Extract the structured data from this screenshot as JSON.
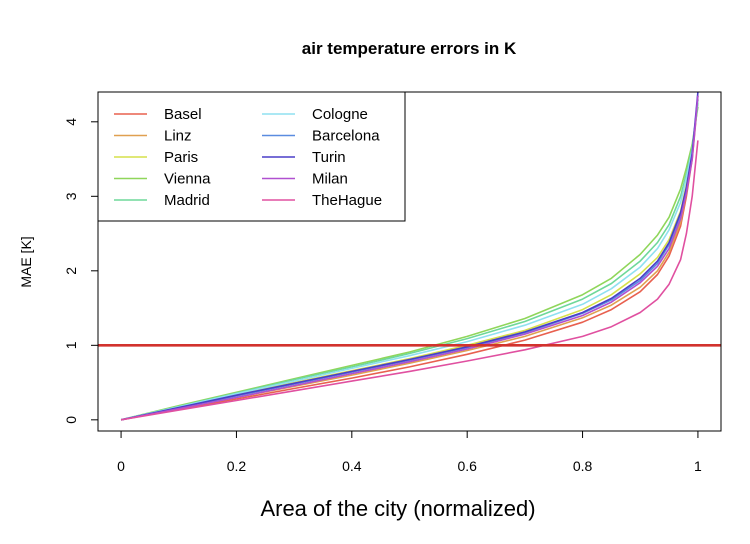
{
  "chart_data": {
    "type": "line",
    "title": "air temperature errors in K",
    "xlabel": "Area of the city (normalized)",
    "ylabel": "MAE [K]",
    "xlim": [
      -0.04,
      1.04
    ],
    "ylim": [
      -0.15,
      4.4
    ],
    "xticks": [
      0,
      0.2,
      0.4,
      0.6,
      0.8,
      1
    ],
    "xtick_labels": [
      "0",
      "0.2",
      "0.4",
      "0.6",
      "0.8",
      "1"
    ],
    "yticks": [
      0,
      1,
      2,
      3,
      4
    ],
    "ytick_labels": [
      "0",
      "1",
      "2",
      "3",
      "4"
    ],
    "grid": false,
    "legend_position": "top-left",
    "reference_line": {
      "y": 1,
      "color": "#d2322d"
    },
    "x": [
      0,
      0.1,
      0.2,
      0.3,
      0.4,
      0.5,
      0.6,
      0.7,
      0.8,
      0.85,
      0.9,
      0.93,
      0.95,
      0.97,
      0.98,
      0.99,
      1.0
    ],
    "series": [
      {
        "name": "Basel",
        "color": "#e8604f",
        "values": [
          0,
          0.14,
          0.28,
          0.42,
          0.56,
          0.71,
          0.88,
          1.07,
          1.31,
          1.48,
          1.72,
          1.95,
          2.2,
          2.6,
          3.0,
          3.5,
          4.3
        ]
      },
      {
        "name": "Linz",
        "color": "#e0a050",
        "values": [
          0,
          0.15,
          0.3,
          0.45,
          0.6,
          0.76,
          0.93,
          1.12,
          1.37,
          1.54,
          1.78,
          2.0,
          2.25,
          2.65,
          3.05,
          3.55,
          4.35
        ]
      },
      {
        "name": "Paris",
        "color": "#d6e04a",
        "values": [
          0,
          0.17,
          0.34,
          0.5,
          0.66,
          0.82,
          1.0,
          1.2,
          1.48,
          1.68,
          1.96,
          2.18,
          2.42,
          2.8,
          3.15,
          3.6,
          4.3
        ]
      },
      {
        "name": "Vienna",
        "color": "#8fd65a",
        "values": [
          0,
          0.19,
          0.37,
          0.55,
          0.73,
          0.91,
          1.12,
          1.36,
          1.68,
          1.9,
          2.22,
          2.48,
          2.72,
          3.1,
          3.38,
          3.7,
          4.2
        ]
      },
      {
        "name": "Madrid",
        "color": "#6ed89a",
        "values": [
          0,
          0.18,
          0.36,
          0.54,
          0.71,
          0.89,
          1.09,
          1.32,
          1.62,
          1.83,
          2.13,
          2.38,
          2.62,
          3.0,
          3.3,
          3.65,
          4.25
        ]
      },
      {
        "name": "Cologne",
        "color": "#8fe0f0",
        "values": [
          0,
          0.175,
          0.35,
          0.52,
          0.69,
          0.86,
          1.05,
          1.27,
          1.55,
          1.76,
          2.05,
          2.3,
          2.55,
          2.92,
          3.25,
          3.62,
          4.3
        ]
      },
      {
        "name": "Barcelona",
        "color": "#5a8ce0",
        "values": [
          0,
          0.16,
          0.32,
          0.48,
          0.64,
          0.8,
          0.97,
          1.17,
          1.43,
          1.61,
          1.87,
          2.1,
          2.35,
          2.75,
          3.1,
          3.55,
          4.35
        ]
      },
      {
        "name": "Turin",
        "color": "#4a3ec8",
        "values": [
          0,
          0.165,
          0.33,
          0.49,
          0.65,
          0.81,
          0.98,
          1.18,
          1.44,
          1.63,
          1.9,
          2.13,
          2.38,
          2.78,
          3.12,
          3.58,
          4.4
        ]
      },
      {
        "name": "Milan",
        "color": "#b050d0",
        "values": [
          0,
          0.15,
          0.3,
          0.46,
          0.62,
          0.78,
          0.95,
          1.15,
          1.4,
          1.58,
          1.84,
          2.06,
          2.3,
          2.7,
          3.05,
          3.5,
          4.35
        ]
      },
      {
        "name": "TheHague",
        "color": "#e050a0",
        "values": [
          0,
          0.13,
          0.26,
          0.39,
          0.52,
          0.65,
          0.79,
          0.94,
          1.12,
          1.25,
          1.44,
          1.62,
          1.82,
          2.15,
          2.5,
          3.0,
          3.75
        ]
      }
    ]
  }
}
